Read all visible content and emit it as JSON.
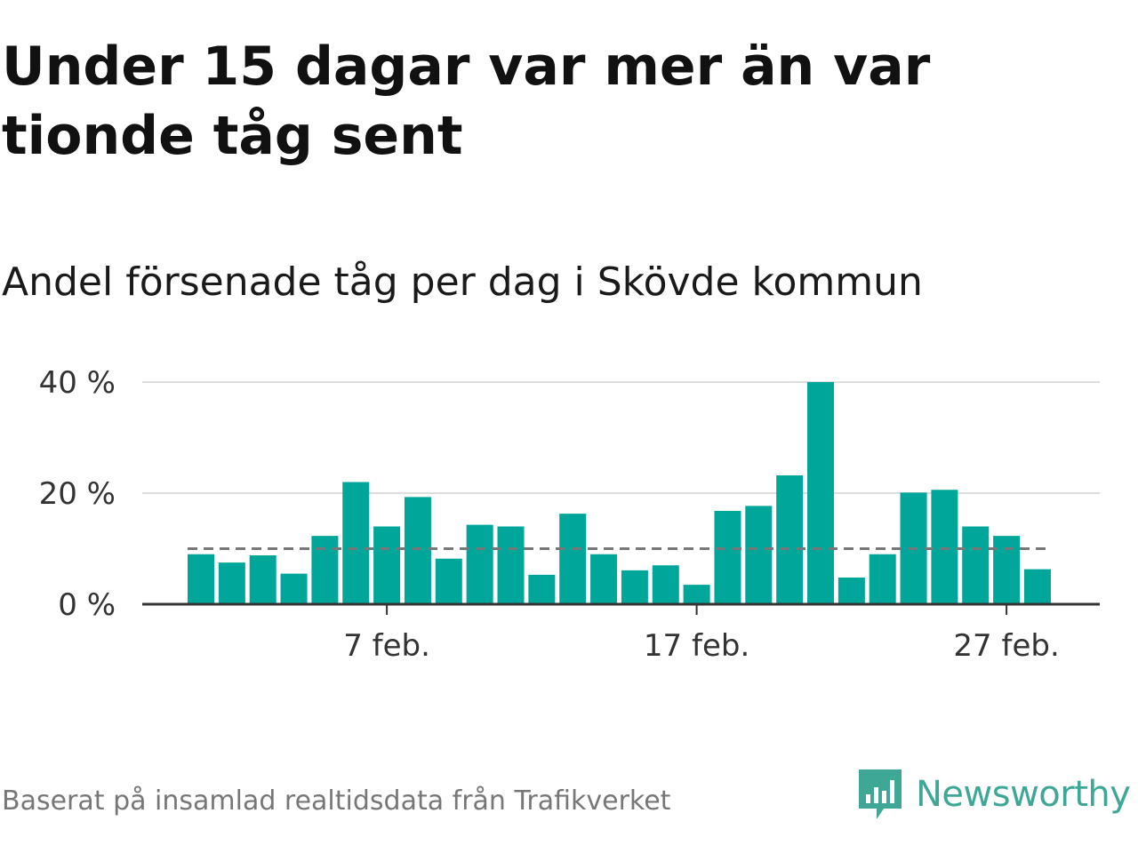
{
  "title": "Under 15 dagar var mer än var tionde tåg sent",
  "subtitle": "Andel försenade tåg per dag i Skövde kommun",
  "footer": "Baserat på insamlad realtidsdata från Trafikverket",
  "brand": {
    "name": "Newsworthy",
    "icon": "newsworthy-logo-icon",
    "color": "#3fa796"
  },
  "colors": {
    "bar": "#00a69a",
    "reference_line": "#777777",
    "grid": "#dddddd",
    "axis": "#333333"
  },
  "chart_data": {
    "type": "bar",
    "x": [
      "1 feb.",
      "2 feb.",
      "3 feb.",
      "4 feb.",
      "5 feb.",
      "6 feb.",
      "7 feb.",
      "8 feb.",
      "9 feb.",
      "10 feb.",
      "11 feb.",
      "12 feb.",
      "13 feb.",
      "14 feb.",
      "15 feb.",
      "16 feb.",
      "17 feb.",
      "18 feb.",
      "19 feb.",
      "20 feb.",
      "21 feb.",
      "22 feb.",
      "23 feb.",
      "24 feb.",
      "25 feb.",
      "26 feb.",
      "27 feb.",
      "28 feb."
    ],
    "values": [
      9,
      7.5,
      8.8,
      5.5,
      12.3,
      22,
      14,
      19.3,
      8.2,
      14.3,
      14,
      5.3,
      16.3,
      9,
      6.1,
      7,
      3.5,
      16.8,
      17.7,
      23.2,
      40,
      4.8,
      9,
      20.1,
      20.6,
      14,
      12.3,
      6.3
    ],
    "reference_line": 10,
    "ylim": [
      0,
      40
    ],
    "y_ticks": [
      0,
      20,
      40
    ],
    "y_tick_labels": [
      "0 %",
      "20 %",
      "40 %"
    ],
    "x_ticks": [
      "7 feb.",
      "17 feb.",
      "27 feb."
    ],
    "grid": true,
    "xlabel": "",
    "ylabel": ""
  }
}
